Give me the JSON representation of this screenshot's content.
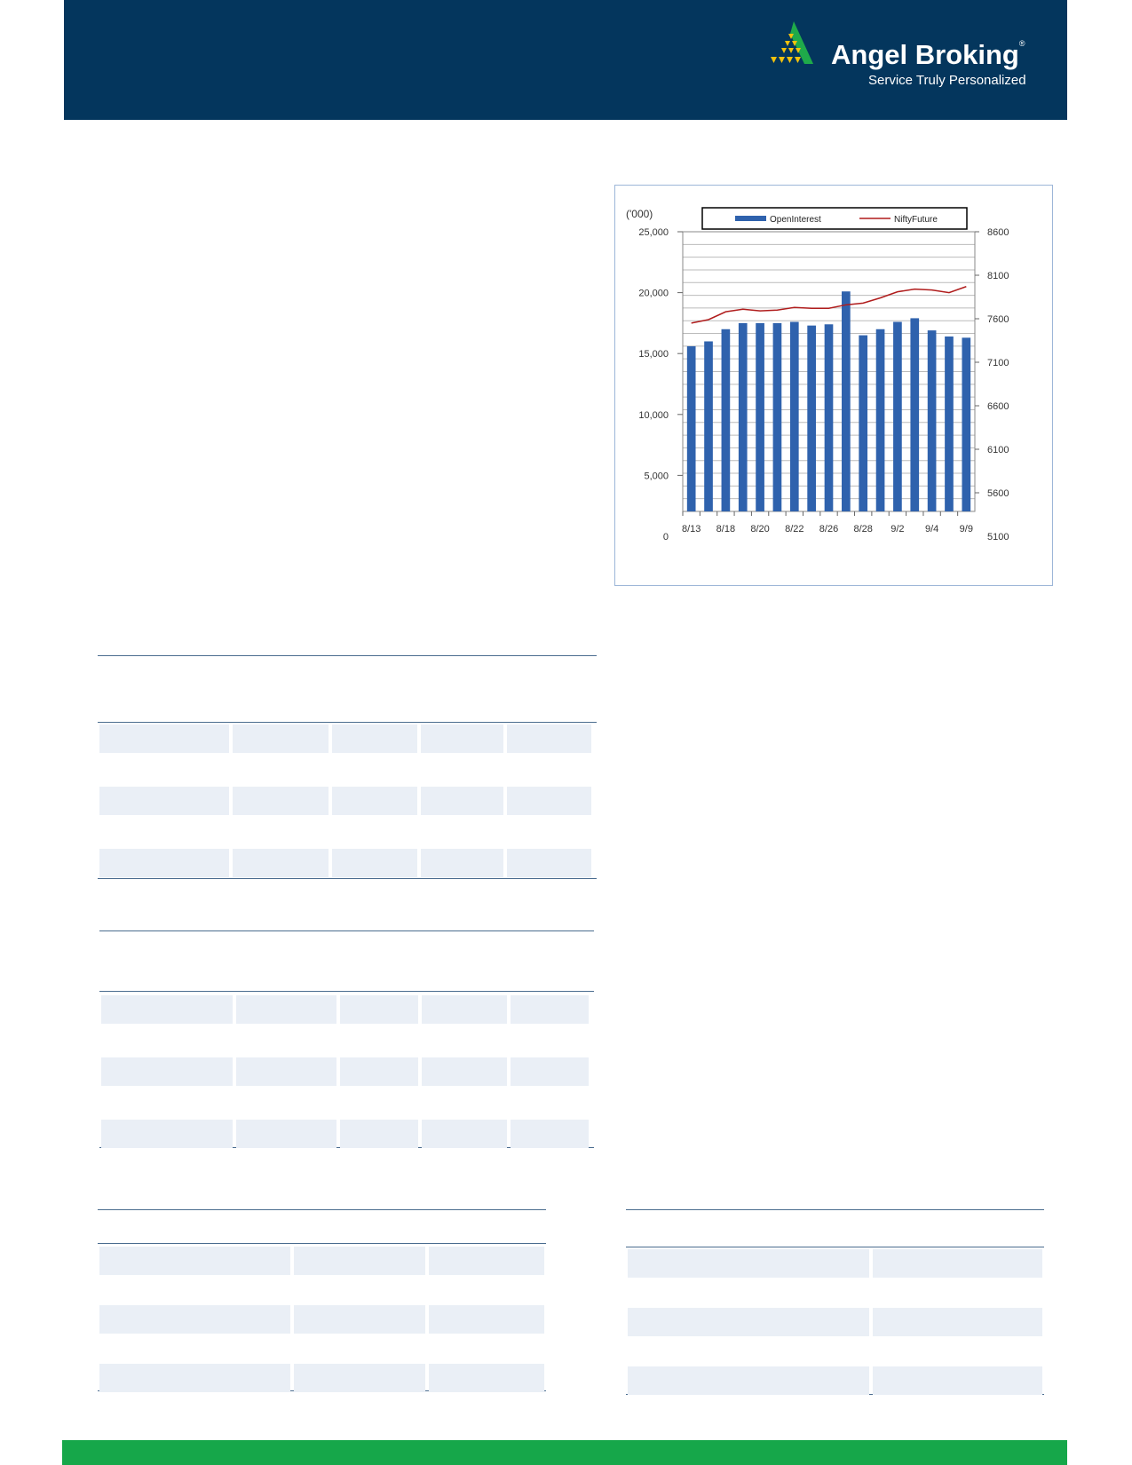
{
  "header": {
    "brand": "Angel Broking",
    "registered": "®",
    "tagline": "Service Truly Personalized",
    "logo_icon": "angel-pyramid-logo",
    "colors": {
      "header_bg": "#04365d",
      "footer_bg": "#16a74a"
    }
  },
  "chart_data": {
    "type": "bar",
    "yunit_label": "('000)",
    "categories": [
      "8/13",
      "",
      "8/18",
      "",
      "8/20",
      "",
      "8/22",
      "",
      "8/26",
      "",
      "8/28",
      "",
      "9/2",
      "",
      "9/4",
      "",
      "9/9"
    ],
    "series": [
      {
        "name": "OpenInterest",
        "type": "bar",
        "axis": "left",
        "color": "#2f62ad",
        "values": [
          15600,
          16000,
          17000,
          17500,
          17500,
          17500,
          17600,
          17300,
          17400,
          20100,
          16500,
          17000,
          17600,
          17900,
          16900,
          16400,
          16300
        ]
      },
      {
        "name": "NiftyFuture",
        "type": "line",
        "axis": "right",
        "color": "#b01c1c",
        "values": [
          7550,
          7590,
          7680,
          7710,
          7690,
          7700,
          7730,
          7720,
          7720,
          7760,
          7780,
          7840,
          7910,
          7940,
          7930,
          7900,
          7970
        ]
      }
    ],
    "ylim": [
      0,
      25000
    ],
    "yticks": [
      "25,000",
      "20,000",
      "15,000",
      "10,000",
      "5,000",
      "0"
    ],
    "y2lim": [
      5100,
      8600
    ],
    "y2ticks": [
      "8600",
      "8100",
      "7600",
      "7100",
      "6600",
      "6100",
      "5600",
      "5100"
    ],
    "legend": "top",
    "grid": true
  }
}
